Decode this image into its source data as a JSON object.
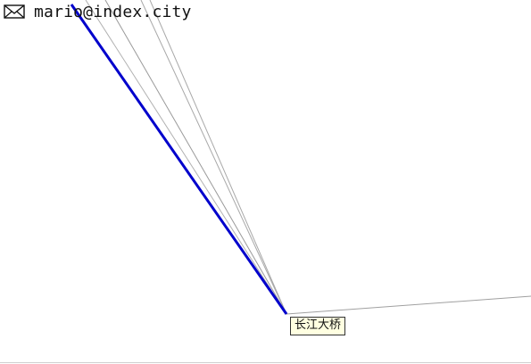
{
  "header": {
    "email": "mario@index.city",
    "icon": "envelope-icon"
  },
  "map": {
    "station_label": "长江大桥",
    "route_color": "#0000cc",
    "line_color": "#9a9a9a",
    "label_background": "#ffffe1"
  }
}
